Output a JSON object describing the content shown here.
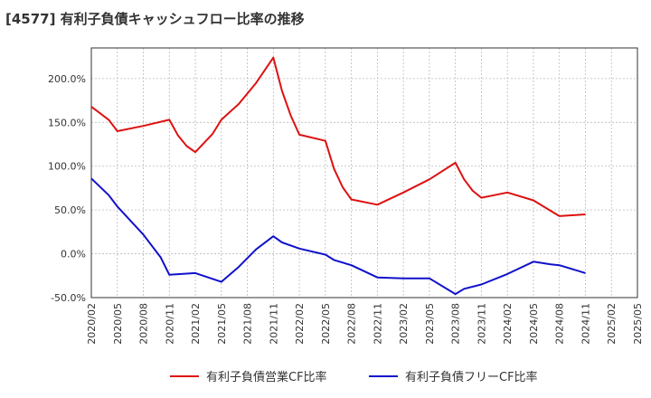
{
  "chart_data": {
    "type": "line",
    "title": "[4577]  有利子負債キャッシュフロー比率の推移",
    "xlabel": "",
    "ylabel": "",
    "ylim": [
      -50,
      235
    ],
    "y_ticks": [
      -50,
      0,
      50,
      100,
      150,
      200
    ],
    "y_tick_labels": [
      "-50.0%",
      "0.0%",
      "50.0%",
      "100.0%",
      "150.0%",
      "200.0%"
    ],
    "x_tick_labels": [
      "2020/02",
      "2020/05",
      "2020/08",
      "2020/11",
      "2021/02",
      "2021/05",
      "2021/08",
      "2021/11",
      "2022/02",
      "2022/05",
      "2022/08",
      "2022/11",
      "2023/02",
      "2023/05",
      "2023/08",
      "2023/11",
      "2024/02",
      "2024/05",
      "2024/08",
      "2024/11",
      "2025/02",
      "2025/05"
    ],
    "x_range_months": [
      0,
      63
    ],
    "grid": true,
    "legend_position": "bottom",
    "series": [
      {
        "name": "有利子負債営業CF比率",
        "color": "#dd1111",
        "points": [
          [
            0,
            168
          ],
          [
            2,
            153
          ],
          [
            3,
            140
          ],
          [
            6,
            146
          ],
          [
            9,
            153
          ],
          [
            10,
            135
          ],
          [
            11,
            123
          ],
          [
            12,
            116
          ],
          [
            14,
            137
          ],
          [
            15,
            153
          ],
          [
            17,
            171
          ],
          [
            19,
            195
          ],
          [
            21,
            224
          ],
          [
            22,
            186
          ],
          [
            23,
            158
          ],
          [
            24,
            136
          ],
          [
            27,
            129
          ],
          [
            28,
            97
          ],
          [
            29,
            76
          ],
          [
            30,
            62
          ],
          [
            33,
            56
          ],
          [
            36,
            70
          ],
          [
            39,
            85
          ],
          [
            42,
            104
          ],
          [
            43,
            85
          ],
          [
            44,
            72
          ],
          [
            45,
            64
          ],
          [
            46,
            66
          ],
          [
            48,
            70
          ],
          [
            51,
            61
          ],
          [
            53,
            49
          ],
          [
            54,
            43
          ],
          [
            57,
            45
          ]
        ]
      },
      {
        "name": "有利子負債フリーCF比率",
        "color": "#1111cc",
        "points": [
          [
            0,
            86
          ],
          [
            2,
            67
          ],
          [
            3,
            54
          ],
          [
            6,
            22
          ],
          [
            8,
            -4
          ],
          [
            9,
            -24
          ],
          [
            12,
            -22
          ],
          [
            15,
            -32
          ],
          [
            17,
            -15
          ],
          [
            19,
            5
          ],
          [
            21,
            20
          ],
          [
            22,
            13
          ],
          [
            24,
            6
          ],
          [
            27,
            -1
          ],
          [
            28,
            -7
          ],
          [
            30,
            -13
          ],
          [
            33,
            -27
          ],
          [
            36,
            -28
          ],
          [
            39,
            -28
          ],
          [
            42,
            -46
          ],
          [
            43,
            -40
          ],
          [
            45,
            -35
          ],
          [
            48,
            -23
          ],
          [
            51,
            -9
          ],
          [
            53,
            -12
          ],
          [
            54,
            -13
          ],
          [
            57,
            -22
          ]
        ]
      }
    ]
  }
}
